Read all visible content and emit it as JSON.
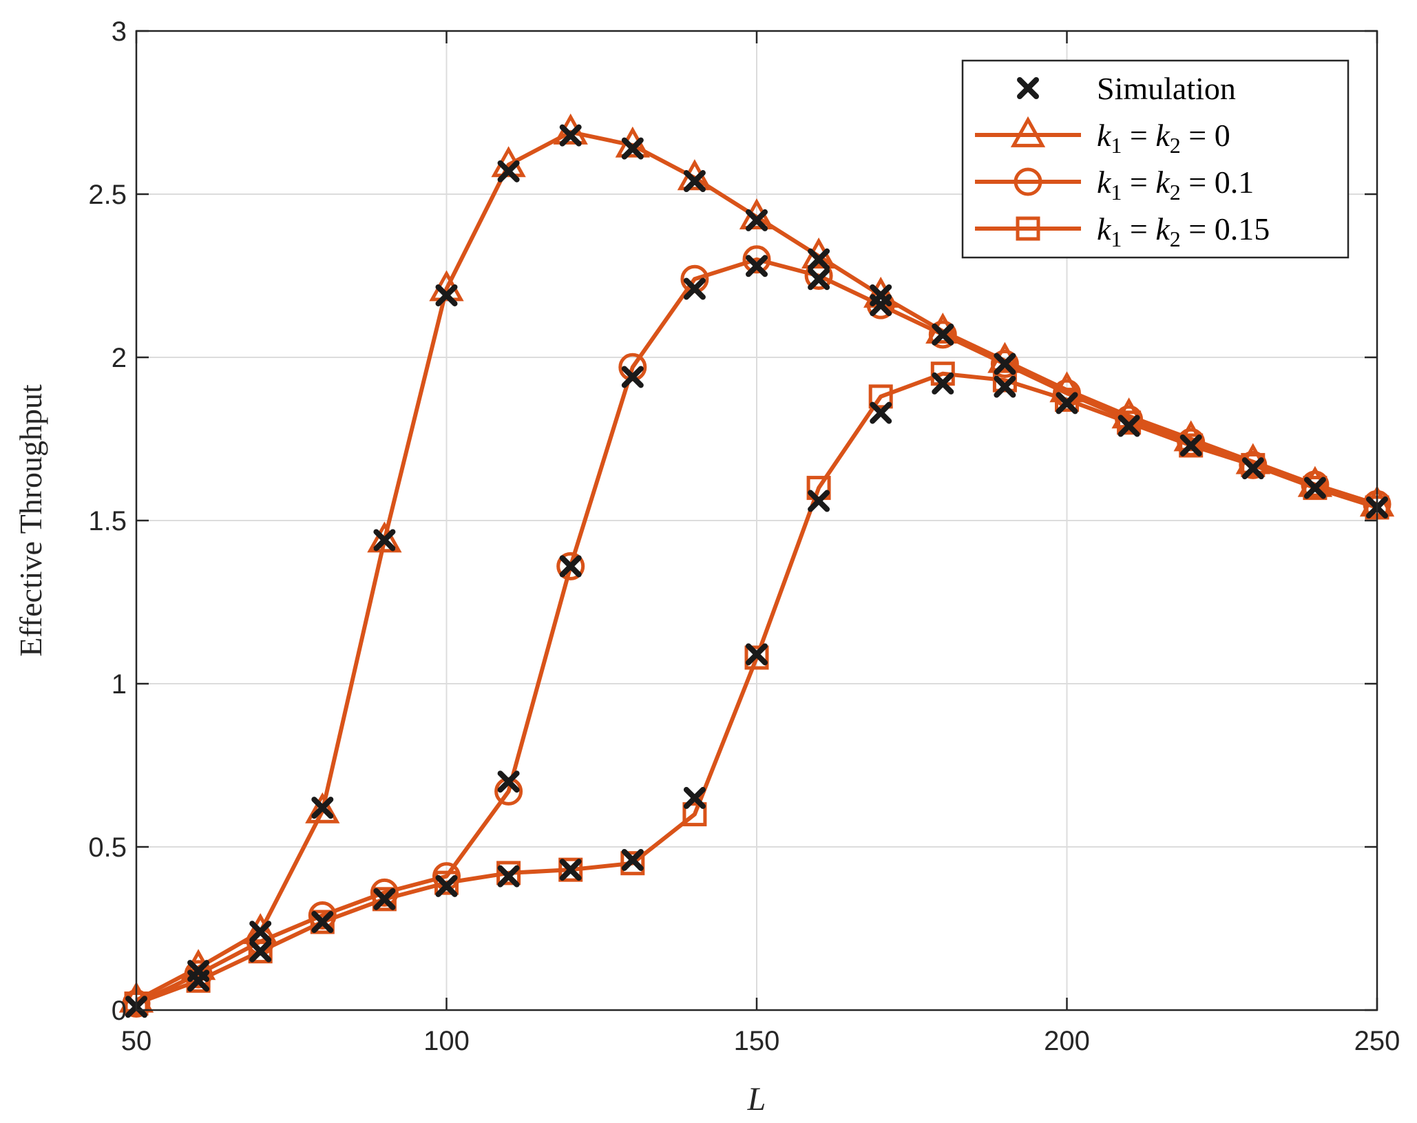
{
  "chart_data": {
    "type": "line",
    "title": "",
    "xlabel": "L",
    "ylabel": "Effective Throughput",
    "xlim": [
      50,
      250
    ],
    "ylim": [
      0,
      3
    ],
    "xticks": [
      50,
      100,
      150,
      200,
      250
    ],
    "yticks": [
      0,
      0.5,
      1,
      1.5,
      2,
      2.5,
      3
    ],
    "xtick_labels": [
      "50",
      "100",
      "150",
      "200",
      "250"
    ],
    "ytick_labels": [
      "0",
      "0.5",
      "1",
      "1.5",
      "2",
      "2.5",
      "3"
    ],
    "grid": true,
    "legend_position": "top-right",
    "line_color": "#D95319",
    "marker_color": "#1A1A1A",
    "x": [
      50,
      60,
      70,
      80,
      90,
      100,
      110,
      120,
      130,
      140,
      150,
      160,
      170,
      180,
      190,
      200,
      210,
      220,
      230,
      240,
      250
    ],
    "series": [
      {
        "name": "k1 = k2 = 0",
        "legend_parts": {
          "k1": "k",
          "s1": "1",
          "eq1": " = ",
          "k2": "k",
          "s2": "2",
          "rest": " = 0"
        },
        "marker": "triangle",
        "values": [
          0.03,
          0.13,
          0.24,
          0.61,
          1.44,
          2.21,
          2.59,
          2.69,
          2.65,
          2.55,
          2.43,
          2.31,
          2.19,
          2.08,
          1.99,
          1.9,
          1.82,
          1.75,
          1.68,
          1.61,
          1.55
        ]
      },
      {
        "name": "k1 = k2 = 0.1",
        "legend_parts": {
          "k1": "k",
          "s1": "1",
          "eq1": " = ",
          "k2": "k",
          "s2": "2",
          "rest": " = 0.1"
        },
        "marker": "circle",
        "values": [
          0.02,
          0.11,
          0.21,
          0.29,
          0.36,
          0.41,
          0.67,
          1.36,
          1.97,
          2.24,
          2.3,
          2.25,
          2.16,
          2.07,
          1.98,
          1.89,
          1.81,
          1.74,
          1.67,
          1.61,
          1.55
        ]
      },
      {
        "name": "k1 = k2 = 0.15",
        "legend_parts": {
          "k1": "k",
          "s1": "1",
          "eq1": " = ",
          "k2": "k",
          "s2": "2",
          "rest": " = 0.15"
        },
        "marker": "square",
        "values": [
          0.02,
          0.09,
          0.18,
          0.27,
          0.34,
          0.39,
          0.42,
          0.43,
          0.45,
          0.6,
          1.08,
          1.6,
          1.88,
          1.95,
          1.93,
          1.87,
          1.8,
          1.73,
          1.67,
          1.6,
          1.54
        ]
      }
    ],
    "simulation": {
      "name": "Simulation",
      "marker": "x",
      "points": [
        [
          50,
          0.01
        ],
        [
          60,
          0.09
        ],
        [
          70,
          0.18
        ],
        [
          80,
          0.27
        ],
        [
          90,
          0.34
        ],
        [
          100,
          0.38
        ],
        [
          110,
          0.41
        ],
        [
          120,
          0.43
        ],
        [
          130,
          0.46
        ],
        [
          140,
          0.65
        ],
        [
          150,
          1.09
        ],
        [
          160,
          1.56
        ],
        [
          170,
          1.83
        ],
        [
          180,
          1.92
        ],
        [
          190,
          1.91
        ],
        [
          200,
          1.86
        ],
        [
          210,
          1.79
        ],
        [
          220,
          1.73
        ],
        [
          230,
          1.66
        ],
        [
          240,
          1.6
        ],
        [
          250,
          1.54
        ],
        [
          80,
          0.62
        ],
        [
          90,
          1.44
        ],
        [
          100,
          2.19
        ],
        [
          110,
          2.57
        ],
        [
          120,
          2.68
        ],
        [
          130,
          2.64
        ],
        [
          140,
          2.54
        ],
        [
          150,
          2.42
        ],
        [
          160,
          2.3
        ],
        [
          170,
          2.19
        ],
        [
          180,
          2.07
        ],
        [
          190,
          1.98
        ],
        [
          110,
          0.7
        ],
        [
          120,
          1.36
        ],
        [
          130,
          1.94
        ],
        [
          140,
          2.21
        ],
        [
          150,
          2.28
        ],
        [
          160,
          2.24
        ],
        [
          170,
          2.16
        ],
        [
          60,
          0.12
        ],
        [
          70,
          0.24
        ]
      ]
    }
  }
}
